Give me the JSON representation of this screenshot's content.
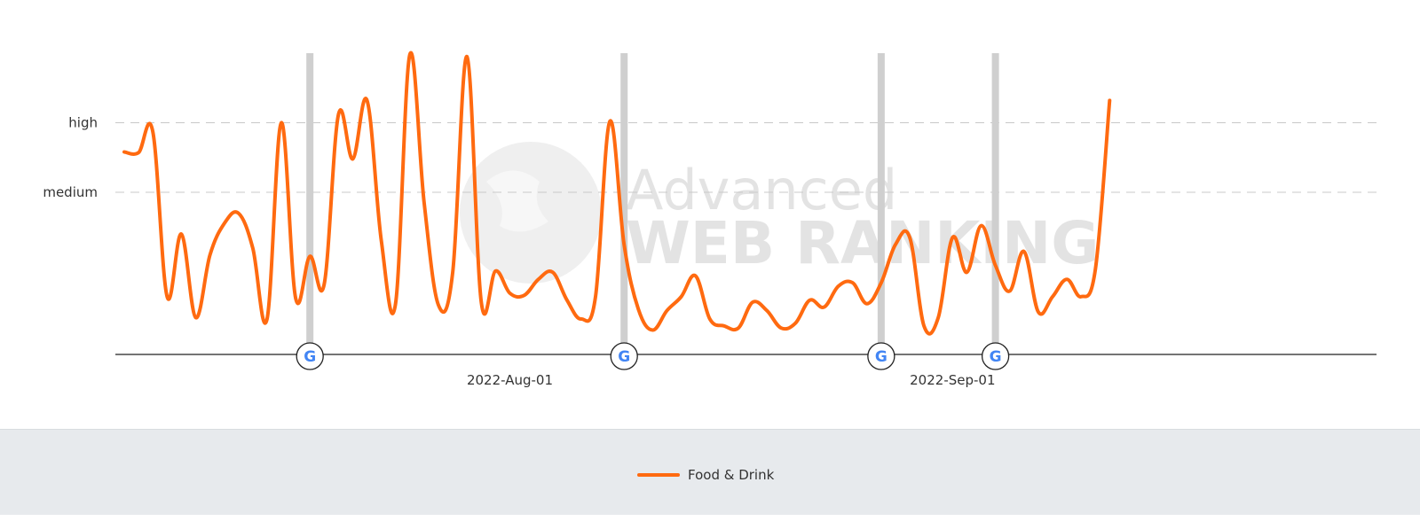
{
  "chart_data": {
    "type": "line",
    "y_levels": [
      {
        "label": "high",
        "value": 2
      },
      {
        "label": "medium",
        "value": 1
      }
    ],
    "ylim": [
      -1.33,
      3
    ],
    "x_range": [
      "2022-07-05",
      "2022-09-30"
    ],
    "x_ticks": [
      {
        "date": "2022-08-01",
        "label": "2022-Aug-01"
      },
      {
        "date": "2022-09-01",
        "label": "2022-Sep-01"
      }
    ],
    "google_updates": [
      "2022-07-18",
      "2022-08-09",
      "2022-08-27",
      "2022-09-04"
    ],
    "grid": true,
    "legend_position": "bottom",
    "series": [
      {
        "name": "Food & Drink",
        "color": "#ff6a10",
        "points": [
          [
            "2022-07-05",
            1.58
          ],
          [
            "2022-07-06",
            1.57
          ],
          [
            "2022-07-07",
            1.87
          ],
          [
            "2022-07-08",
            -0.5
          ],
          [
            "2022-07-09",
            0.4
          ],
          [
            "2022-07-10",
            -0.8
          ],
          [
            "2022-07-11",
            0.1
          ],
          [
            "2022-07-12",
            0.55
          ],
          [
            "2022-07-13",
            0.7
          ],
          [
            "2022-07-14",
            0.2
          ],
          [
            "2022-07-15",
            -0.82
          ],
          [
            "2022-07-16",
            2.0
          ],
          [
            "2022-07-17",
            -0.52
          ],
          [
            "2022-07-18",
            0.08
          ],
          [
            "2022-07-19",
            -0.32
          ],
          [
            "2022-07-20",
            2.12
          ],
          [
            "2022-07-21",
            1.48
          ],
          [
            "2022-07-22",
            2.32
          ],
          [
            "2022-07-23",
            0.3
          ],
          [
            "2022-07-24",
            -0.6
          ],
          [
            "2022-07-25",
            2.98
          ],
          [
            "2022-07-26",
            0.85
          ],
          [
            "2022-07-27",
            -0.62
          ],
          [
            "2022-07-28",
            -0.15
          ],
          [
            "2022-07-29",
            2.95
          ],
          [
            "2022-07-30",
            -0.58
          ],
          [
            "2022-07-31",
            -0.13
          ],
          [
            "2022-08-01",
            -0.45
          ],
          [
            "2022-08-02",
            -0.48
          ],
          [
            "2022-08-03",
            -0.25
          ],
          [
            "2022-08-04",
            -0.15
          ],
          [
            "2022-08-05",
            -0.55
          ],
          [
            "2022-08-06",
            -0.82
          ],
          [
            "2022-08-07",
            -0.5
          ],
          [
            "2022-08-08",
            2.02
          ],
          [
            "2022-08-09",
            0.25
          ],
          [
            "2022-08-10",
            -0.68
          ],
          [
            "2022-08-11",
            -0.98
          ],
          [
            "2022-08-12",
            -0.7
          ],
          [
            "2022-08-13",
            -0.5
          ],
          [
            "2022-08-14",
            -0.2
          ],
          [
            "2022-08-15",
            -0.82
          ],
          [
            "2022-08-16",
            -0.92
          ],
          [
            "2022-08-17",
            -0.95
          ],
          [
            "2022-08-18",
            -0.58
          ],
          [
            "2022-08-19",
            -0.7
          ],
          [
            "2022-08-20",
            -0.95
          ],
          [
            "2022-08-21",
            -0.88
          ],
          [
            "2022-08-22",
            -0.55
          ],
          [
            "2022-08-23",
            -0.65
          ],
          [
            "2022-08-24",
            -0.35
          ],
          [
            "2022-08-25",
            -0.3
          ],
          [
            "2022-08-26",
            -0.6
          ],
          [
            "2022-08-27",
            -0.3
          ],
          [
            "2022-08-28",
            0.25
          ],
          [
            "2022-08-29",
            0.35
          ],
          [
            "2022-08-30",
            -0.92
          ],
          [
            "2022-08-31",
            -0.8
          ],
          [
            "2022-09-01",
            0.35
          ],
          [
            "2022-09-02",
            -0.15
          ],
          [
            "2022-09-03",
            0.52
          ],
          [
            "2022-09-04",
            -0.05
          ],
          [
            "2022-09-05",
            -0.42
          ],
          [
            "2022-09-06",
            0.15
          ],
          [
            "2022-09-07",
            -0.72
          ],
          [
            "2022-09-08",
            -0.5
          ],
          [
            "2022-09-09",
            -0.25
          ],
          [
            "2022-09-10",
            -0.5
          ],
          [
            "2022-09-11",
            -0.1
          ],
          [
            "2022-09-12",
            2.32
          ]
        ]
      }
    ]
  },
  "watermark": {
    "line1": "Advanced",
    "line2": "WEB RANKING"
  },
  "google_marker": {
    "glyph": "G",
    "icon": "google-update-icon"
  },
  "colors": {
    "series": "#ff6a10",
    "grid": "#c8c8c8",
    "update_line": "#cfcfcf",
    "axis": "#222222",
    "legend_bg": "#e7eaed"
  }
}
